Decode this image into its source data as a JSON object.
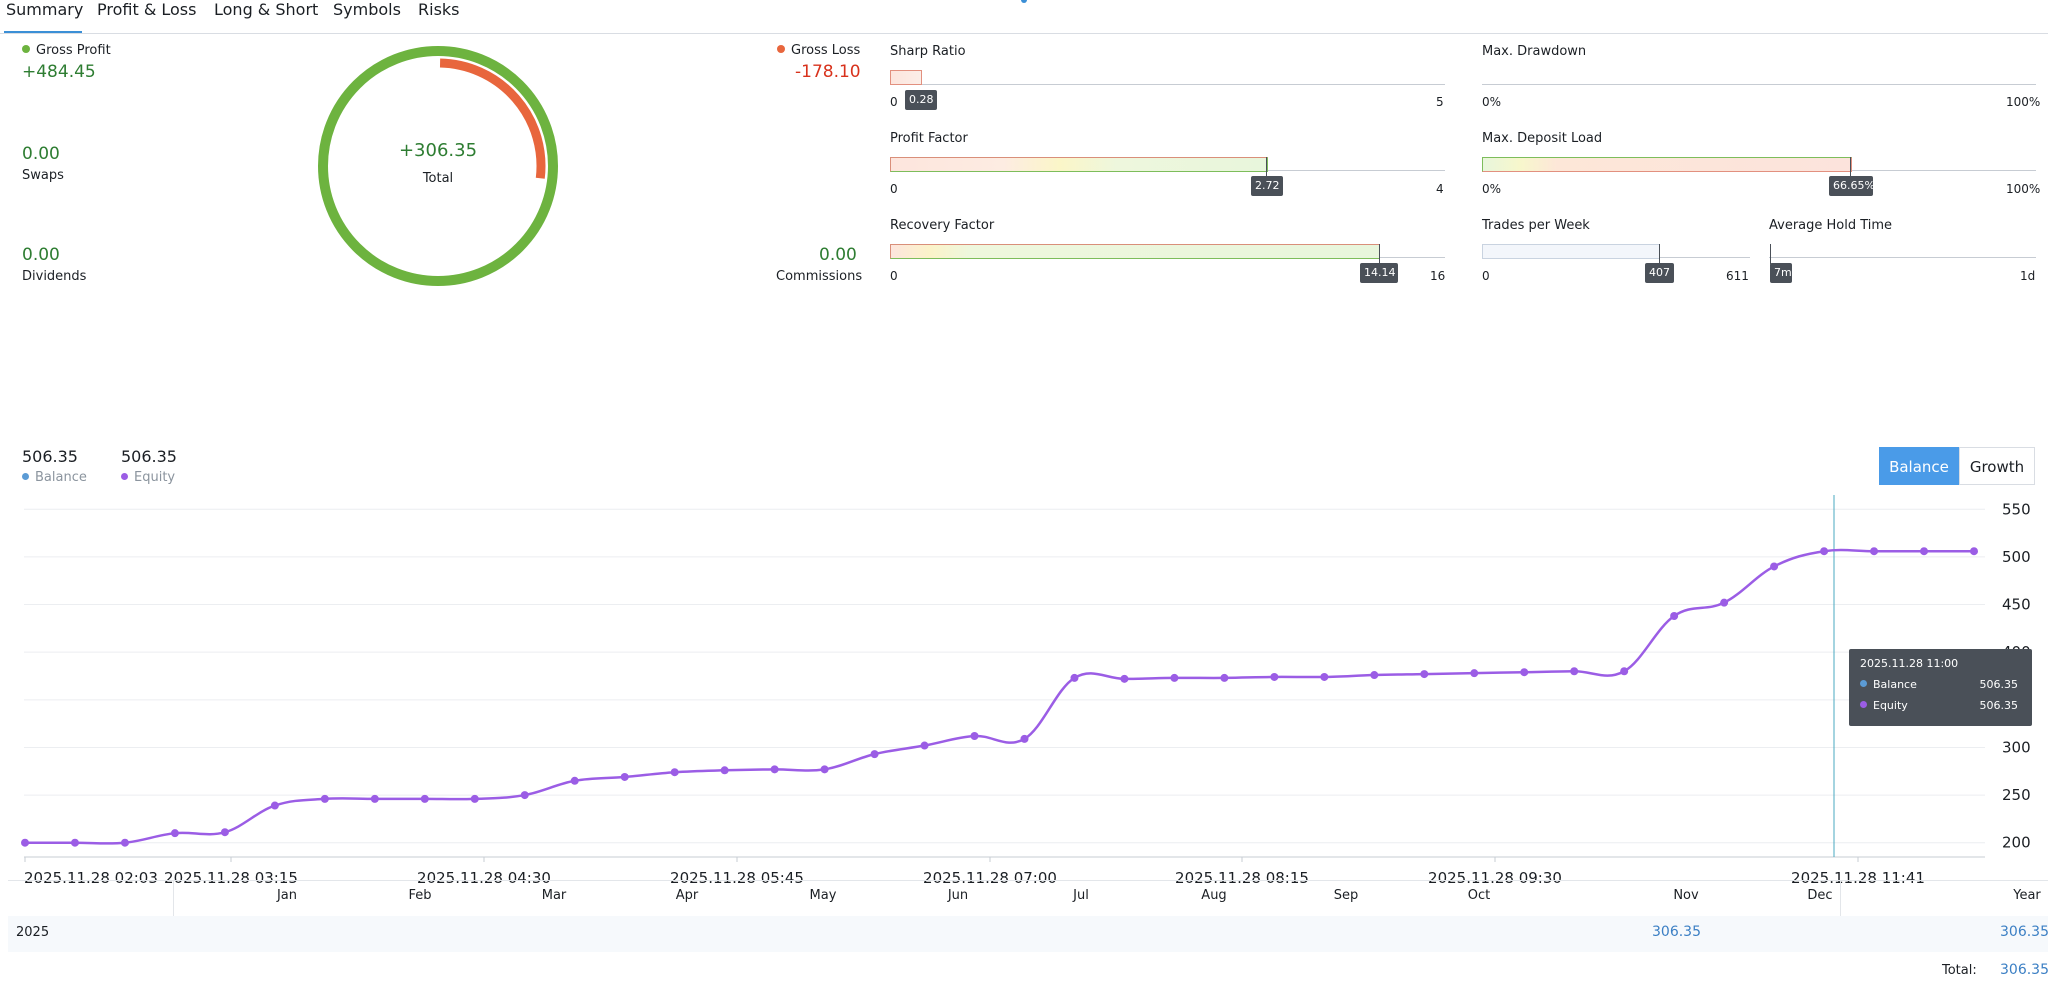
{
  "tabs": [
    "Summary",
    "Profit & Loss",
    "Long & Short",
    "Symbols",
    "Risks"
  ],
  "summary": {
    "gross_profit_label": "Gross Profit",
    "gross_profit_value": "+484.45",
    "gross_loss_label": "Gross Loss",
    "gross_loss_value": "-178.10",
    "swaps_value": "0.00",
    "swaps_label": "Swaps",
    "dividends_value": "0.00",
    "dividends_label": "Dividends",
    "commissions_value": "0.00",
    "commissions_label": "Commissions",
    "total_value": "+306.35",
    "total_label": "Total",
    "profit_fraction": 0.731,
    "loss_fraction": 0.269
  },
  "metrics": {
    "sharp_ratio": {
      "title": "Sharp Ratio",
      "min": "0",
      "max": "5",
      "value": "0.28"
    },
    "max_drawdown": {
      "title": "Max. Drawdown",
      "min": "0%",
      "max": "100%"
    },
    "profit_factor": {
      "title": "Profit Factor",
      "min": "0",
      "max": "4",
      "value": "2.72"
    },
    "max_deposit_load": {
      "title": "Max. Deposit Load",
      "min": "0%",
      "max": "100%",
      "value": "66.65%"
    },
    "recovery_factor": {
      "title": "Recovery Factor",
      "min": "0",
      "max": "16",
      "value": "14.14"
    },
    "trades_per_week": {
      "title": "Trades per Week",
      "min": "0",
      "max": "611",
      "value": "407"
    },
    "average_hold_time": {
      "title": "Average Hold Time",
      "min": "7m",
      "max": "1d",
      "value": "7m"
    }
  },
  "chart_header": {
    "balance_value": "506.35",
    "balance_label": "Balance",
    "equity_value": "506.35",
    "equity_label": "Equity",
    "balance_button": "Balance",
    "growth_button": "Growth"
  },
  "colors": {
    "green": "#6db33f",
    "red": "#e8663d",
    "equity": "#9b5de5",
    "balance": "#5b9bd5",
    "accent": "#4a9be8"
  },
  "tooltip": {
    "time": "2025.11.28 11:00",
    "balance_label": "Balance",
    "balance_value": "506.35",
    "equity_label": "Equity",
    "equity_value": "506.35"
  },
  "chart_data": {
    "type": "line",
    "y_ticks": [
      "550",
      "500",
      "450",
      "400",
      "350",
      "300",
      "250",
      "200"
    ],
    "x_ticks": [
      "2025.11.28 02:03",
      "2025.11.28 03:15",
      "2025.11.28 04:30",
      "2025.11.28 05:45",
      "2025.11.28 07:00",
      "2025.11.28 08:15",
      "2025.11.28 09:30",
      "2025.11.28 11:41"
    ],
    "ylim": [
      185,
      565
    ],
    "series": [
      {
        "name": "Equity",
        "values": [
          200,
          200,
          200,
          210,
          211,
          239,
          246,
          246,
          246,
          246,
          250,
          265,
          269,
          274,
          276,
          277,
          277,
          293,
          302,
          312,
          309,
          373,
          372,
          373,
          373,
          374,
          374,
          376,
          377,
          378,
          379,
          380,
          380,
          438,
          452,
          490,
          506,
          506,
          506,
          506
        ]
      }
    ]
  },
  "yearly_table": {
    "months": [
      "Jan",
      "Feb",
      "Mar",
      "Apr",
      "May",
      "Jun",
      "Jul",
      "Aug",
      "Sep",
      "Oct",
      "Nov",
      "Dec"
    ],
    "year_header": "Year",
    "row_year": "2025",
    "nov_value": "306.35",
    "year_value": "306.35",
    "total_label": "Total:",
    "total_value": "306.35"
  }
}
